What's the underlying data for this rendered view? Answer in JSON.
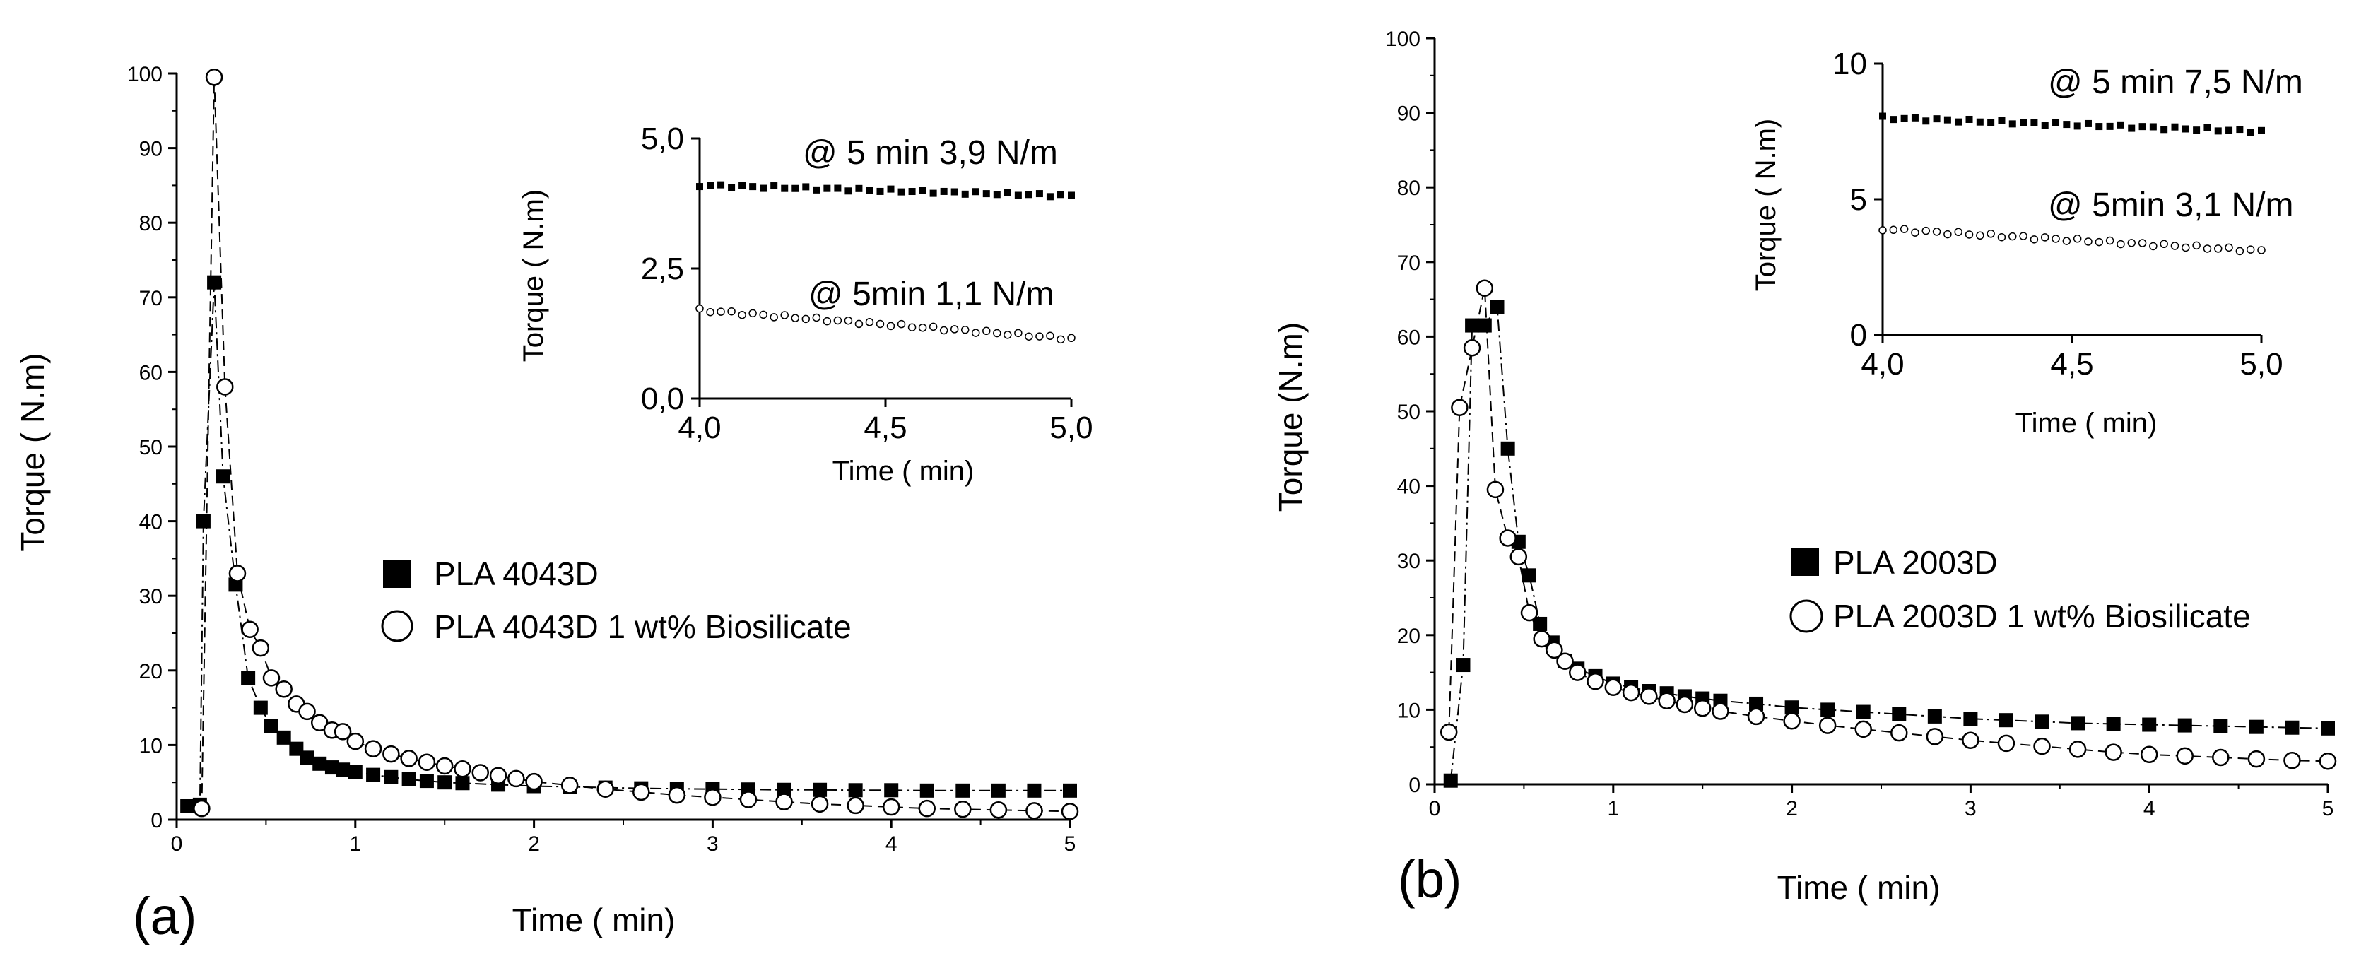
{
  "chart_data": [
    {
      "type": "scatter",
      "panel_label": "(a)",
      "xlabel": "Time  ( min)",
      "ylabel": "Torque  ( N.m)",
      "xlim": [
        0,
        5
      ],
      "ylim": [
        0,
        100
      ],
      "xticks": [
        "0",
        "1",
        "2",
        "3",
        "4",
        "5"
      ],
      "yticks": [
        "0",
        "10",
        "20",
        "30",
        "40",
        "50",
        "60",
        "70",
        "80",
        "90",
        "100"
      ],
      "legend_position": "center-right",
      "series": [
        {
          "name": "PLA 4043D",
          "marker": "filled-square",
          "points": [
            [
              0.06,
              1.8
            ],
            [
              0.13,
              2.0
            ],
            [
              0.15,
              40
            ],
            [
              0.21,
              72
            ],
            [
              0.26,
              46
            ],
            [
              0.33,
              31.5
            ],
            [
              0.4,
              19
            ],
            [
              0.47,
              15
            ],
            [
              0.53,
              12.5
            ],
            [
              0.6,
              11
            ],
            [
              0.67,
              9.5
            ],
            [
              0.73,
              8.3
            ],
            [
              0.8,
              7.5
            ],
            [
              0.87,
              7
            ],
            [
              0.93,
              6.7
            ],
            [
              1.0,
              6.4
            ],
            [
              1.1,
              6.0
            ],
            [
              1.2,
              5.7
            ],
            [
              1.3,
              5.4
            ],
            [
              1.4,
              5.2
            ],
            [
              1.5,
              5.0
            ],
            [
              1.6,
              4.9
            ],
            [
              1.8,
              4.7
            ],
            [
              2.0,
              4.5
            ],
            [
              2.2,
              4.4
            ],
            [
              2.4,
              4.3
            ],
            [
              2.6,
              4.2
            ],
            [
              2.8,
              4.15
            ],
            [
              3.0,
              4.1
            ],
            [
              3.2,
              4.05
            ],
            [
              3.4,
              4.0
            ],
            [
              3.6,
              4.0
            ],
            [
              3.8,
              3.95
            ],
            [
              4.0,
              3.95
            ],
            [
              4.2,
              3.9
            ],
            [
              4.4,
              3.9
            ],
            [
              4.6,
              3.9
            ],
            [
              4.8,
              3.9
            ],
            [
              5.0,
              3.9
            ]
          ]
        },
        {
          "name": "PLA 4043D 1 wt% Biosilicate",
          "marker": "open-circle",
          "points": [
            [
              0.14,
              1.5
            ],
            [
              0.21,
              99.5
            ],
            [
              0.27,
              58
            ],
            [
              0.34,
              33
            ],
            [
              0.41,
              25.5
            ],
            [
              0.47,
              23
            ],
            [
              0.53,
              19
            ],
            [
              0.6,
              17.5
            ],
            [
              0.67,
              15.5
            ],
            [
              0.73,
              14.5
            ],
            [
              0.8,
              13
            ],
            [
              0.87,
              12
            ],
            [
              0.93,
              11.8
            ],
            [
              1.0,
              10.5
            ],
            [
              1.1,
              9.5
            ],
            [
              1.2,
              8.8
            ],
            [
              1.3,
              8.2
            ],
            [
              1.4,
              7.7
            ],
            [
              1.5,
              7.2
            ],
            [
              1.6,
              6.8
            ],
            [
              1.7,
              6.3
            ],
            [
              1.8,
              5.9
            ],
            [
              1.9,
              5.5
            ],
            [
              2.0,
              5.1
            ],
            [
              2.2,
              4.6
            ],
            [
              2.4,
              4.1
            ],
            [
              2.6,
              3.7
            ],
            [
              2.8,
              3.3
            ],
            [
              3.0,
              3.0
            ],
            [
              3.2,
              2.7
            ],
            [
              3.4,
              2.4
            ],
            [
              3.6,
              2.1
            ],
            [
              3.8,
              1.9
            ],
            [
              4.0,
              1.7
            ],
            [
              4.2,
              1.5
            ],
            [
              4.4,
              1.4
            ],
            [
              4.6,
              1.3
            ],
            [
              4.8,
              1.2
            ],
            [
              5.0,
              1.1
            ]
          ]
        }
      ],
      "legend": [
        {
          "label": "PLA 4043D",
          "marker": "filled-square"
        },
        {
          "label": "PLA 4043D 1 wt% Biosilicate",
          "marker": "open-circle"
        }
      ],
      "inset": {
        "xlabel": "Time  ( min)",
        "ylabel": "Torque  ( N.m)",
        "xlim": [
          4.0,
          5.0
        ],
        "ylim": [
          0.0,
          5.0
        ],
        "xticks": [
          "4,0",
          "4,5",
          "5,0"
        ],
        "yticks": [
          "0,0",
          "2,5",
          "5,0"
        ],
        "annotations": [
          "@ 5 min 3,9 N/m",
          "@ 5min 1,1 N/m"
        ],
        "series": [
          {
            "name": "PLA 4043D",
            "marker": "filled-square",
            "start": 4.1,
            "end": 3.9
          },
          {
            "name": "PLA 4043D 1 wt% Biosilicate",
            "marker": "open-circle",
            "start": 1.7,
            "end": 1.15
          }
        ]
      }
    },
    {
      "type": "scatter",
      "panel_label": "(b)",
      "xlabel": "Time  ( min)",
      "ylabel": "Torque  (N.m)",
      "xlim": [
        0,
        5
      ],
      "ylim": [
        0,
        100
      ],
      "xticks": [
        "0",
        "1",
        "2",
        "3",
        "4",
        "5"
      ],
      "yticks": [
        "0",
        "10",
        "20",
        "30",
        "40",
        "50",
        "60",
        "70",
        "80",
        "90",
        "100"
      ],
      "legend_position": "center-right",
      "series": [
        {
          "name": "PLA 2003D",
          "marker": "filled-square",
          "points": [
            [
              0.09,
              0.5
            ],
            [
              0.16,
              16
            ],
            [
              0.21,
              61.5
            ],
            [
              0.28,
              61.5
            ],
            [
              0.35,
              64
            ],
            [
              0.41,
              45
            ],
            [
              0.47,
              32.5
            ],
            [
              0.53,
              28
            ],
            [
              0.59,
              21.5
            ],
            [
              0.66,
              19
            ],
            [
              0.73,
              16.5
            ],
            [
              0.8,
              15.5
            ],
            [
              0.9,
              14.5
            ],
            [
              1.0,
              13.5
            ],
            [
              1.1,
              13
            ],
            [
              1.2,
              12.5
            ],
            [
              1.3,
              12.2
            ],
            [
              1.4,
              11.8
            ],
            [
              1.5,
              11.5
            ],
            [
              1.6,
              11.2
            ],
            [
              1.8,
              10.8
            ],
            [
              2.0,
              10.3
            ],
            [
              2.2,
              10
            ],
            [
              2.4,
              9.7
            ],
            [
              2.6,
              9.4
            ],
            [
              2.8,
              9.1
            ],
            [
              3.0,
              8.8
            ],
            [
              3.2,
              8.6
            ],
            [
              3.4,
              8.4
            ],
            [
              3.6,
              8.2
            ],
            [
              3.8,
              8.1
            ],
            [
              4.0,
              8.0
            ],
            [
              4.2,
              7.9
            ],
            [
              4.4,
              7.8
            ],
            [
              4.6,
              7.7
            ],
            [
              4.8,
              7.6
            ],
            [
              5.0,
              7.5
            ]
          ]
        },
        {
          "name": "PLA 2003D 1 wt% Biosilicate",
          "marker": "open-circle",
          "points": [
            [
              0.08,
              7
            ],
            [
              0.14,
              50.5
            ],
            [
              0.21,
              58.5
            ],
            [
              0.28,
              66.5
            ],
            [
              0.34,
              39.5
            ],
            [
              0.41,
              33
            ],
            [
              0.47,
              30.5
            ],
            [
              0.53,
              23
            ],
            [
              0.6,
              19.5
            ],
            [
              0.67,
              18
            ],
            [
              0.73,
              16.5
            ],
            [
              0.8,
              15
            ],
            [
              0.9,
              13.8
            ],
            [
              1.0,
              13
            ],
            [
              1.1,
              12.3
            ],
            [
              1.2,
              11.8
            ],
            [
              1.3,
              11.2
            ],
            [
              1.4,
              10.7
            ],
            [
              1.5,
              10.2
            ],
            [
              1.6,
              9.8
            ],
            [
              1.8,
              9.1
            ],
            [
              2.0,
              8.5
            ],
            [
              2.2,
              7.9
            ],
            [
              2.4,
              7.4
            ],
            [
              2.6,
              6.9
            ],
            [
              2.8,
              6.4
            ],
            [
              3.0,
              5.9
            ],
            [
              3.2,
              5.5
            ],
            [
              3.4,
              5.1
            ],
            [
              3.6,
              4.7
            ],
            [
              3.8,
              4.3
            ],
            [
              4.0,
              4.0
            ],
            [
              4.2,
              3.8
            ],
            [
              4.4,
              3.6
            ],
            [
              4.6,
              3.4
            ],
            [
              4.8,
              3.2
            ],
            [
              5.0,
              3.1
            ]
          ]
        }
      ],
      "legend": [
        {
          "label": "PLA 2003D",
          "marker": "filled-square"
        },
        {
          "label": "PLA 2003D 1 wt% Biosilicate",
          "marker": "open-circle"
        }
      ],
      "inset": {
        "xlabel": "Time  ( min)",
        "ylabel": "Torque  ( N.m)",
        "xlim": [
          4.0,
          5.0
        ],
        "ylim": [
          0,
          10
        ],
        "xticks": [
          "4,0",
          "4,5",
          "5,0"
        ],
        "yticks": [
          "0",
          "5",
          "10"
        ],
        "annotations": [
          "@ 5 min 7,5 N/m",
          "@ 5min 3,1 N/m"
        ],
        "series": [
          {
            "name": "PLA 2003D",
            "marker": "filled-square",
            "start": 8.0,
            "end": 7.5
          },
          {
            "name": "PLA 2003D 1 wt% Biosilicate",
            "marker": "open-circle",
            "start": 3.9,
            "end": 3.1
          }
        ]
      }
    }
  ]
}
